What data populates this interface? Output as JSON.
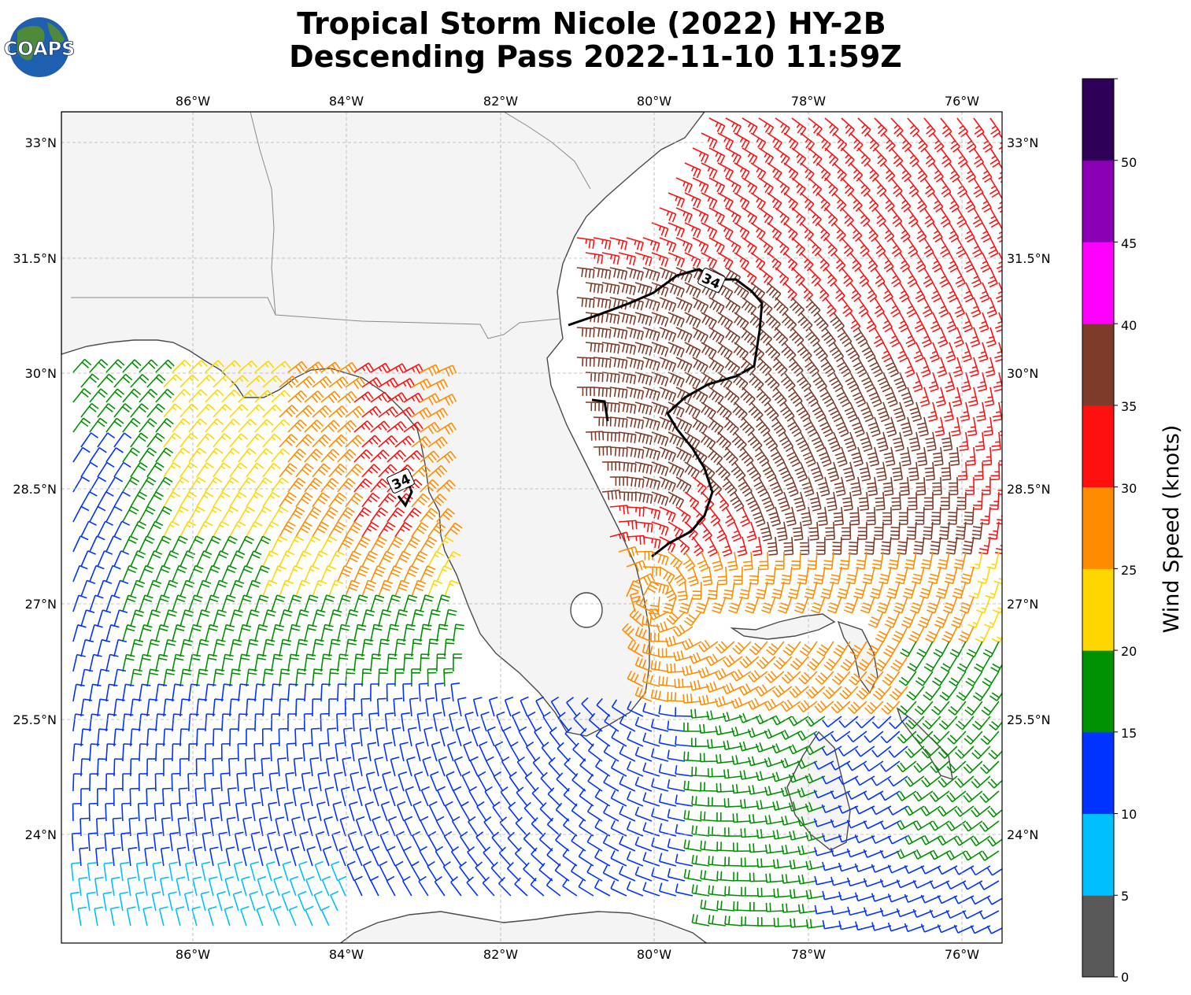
{
  "header": {
    "title_line1": "Tropical Storm Nicole (2022) HY-2B",
    "title_line2": "Descending Pass 2022-11-10 11:59Z",
    "logo_text": "COAPS"
  },
  "map": {
    "lon_labels": [
      "86°W",
      "84°W",
      "82°W",
      "80°W",
      "78°W",
      "76°W"
    ],
    "lat_labels": [
      "33°N",
      "31.5°N",
      "30°N",
      "28.5°N",
      "27°N",
      "25.5°N",
      "24°N"
    ],
    "contour_labels": [
      "34",
      "34"
    ],
    "gridlines": true
  },
  "colorbar": {
    "label": "Wind Speed (knots)",
    "tick_labels": [
      "0",
      "5",
      "10",
      "15",
      "20",
      "25",
      "30",
      "35",
      "40",
      "45",
      "50"
    ],
    "colors": [
      "#595959",
      "#00bfff",
      "#0033ff",
      "#009100",
      "#ffd700",
      "#ff8c00",
      "#ff1010",
      "#7f3b2a",
      "#ff00ff",
      "#8b00b5",
      "#2e0057"
    ]
  }
}
